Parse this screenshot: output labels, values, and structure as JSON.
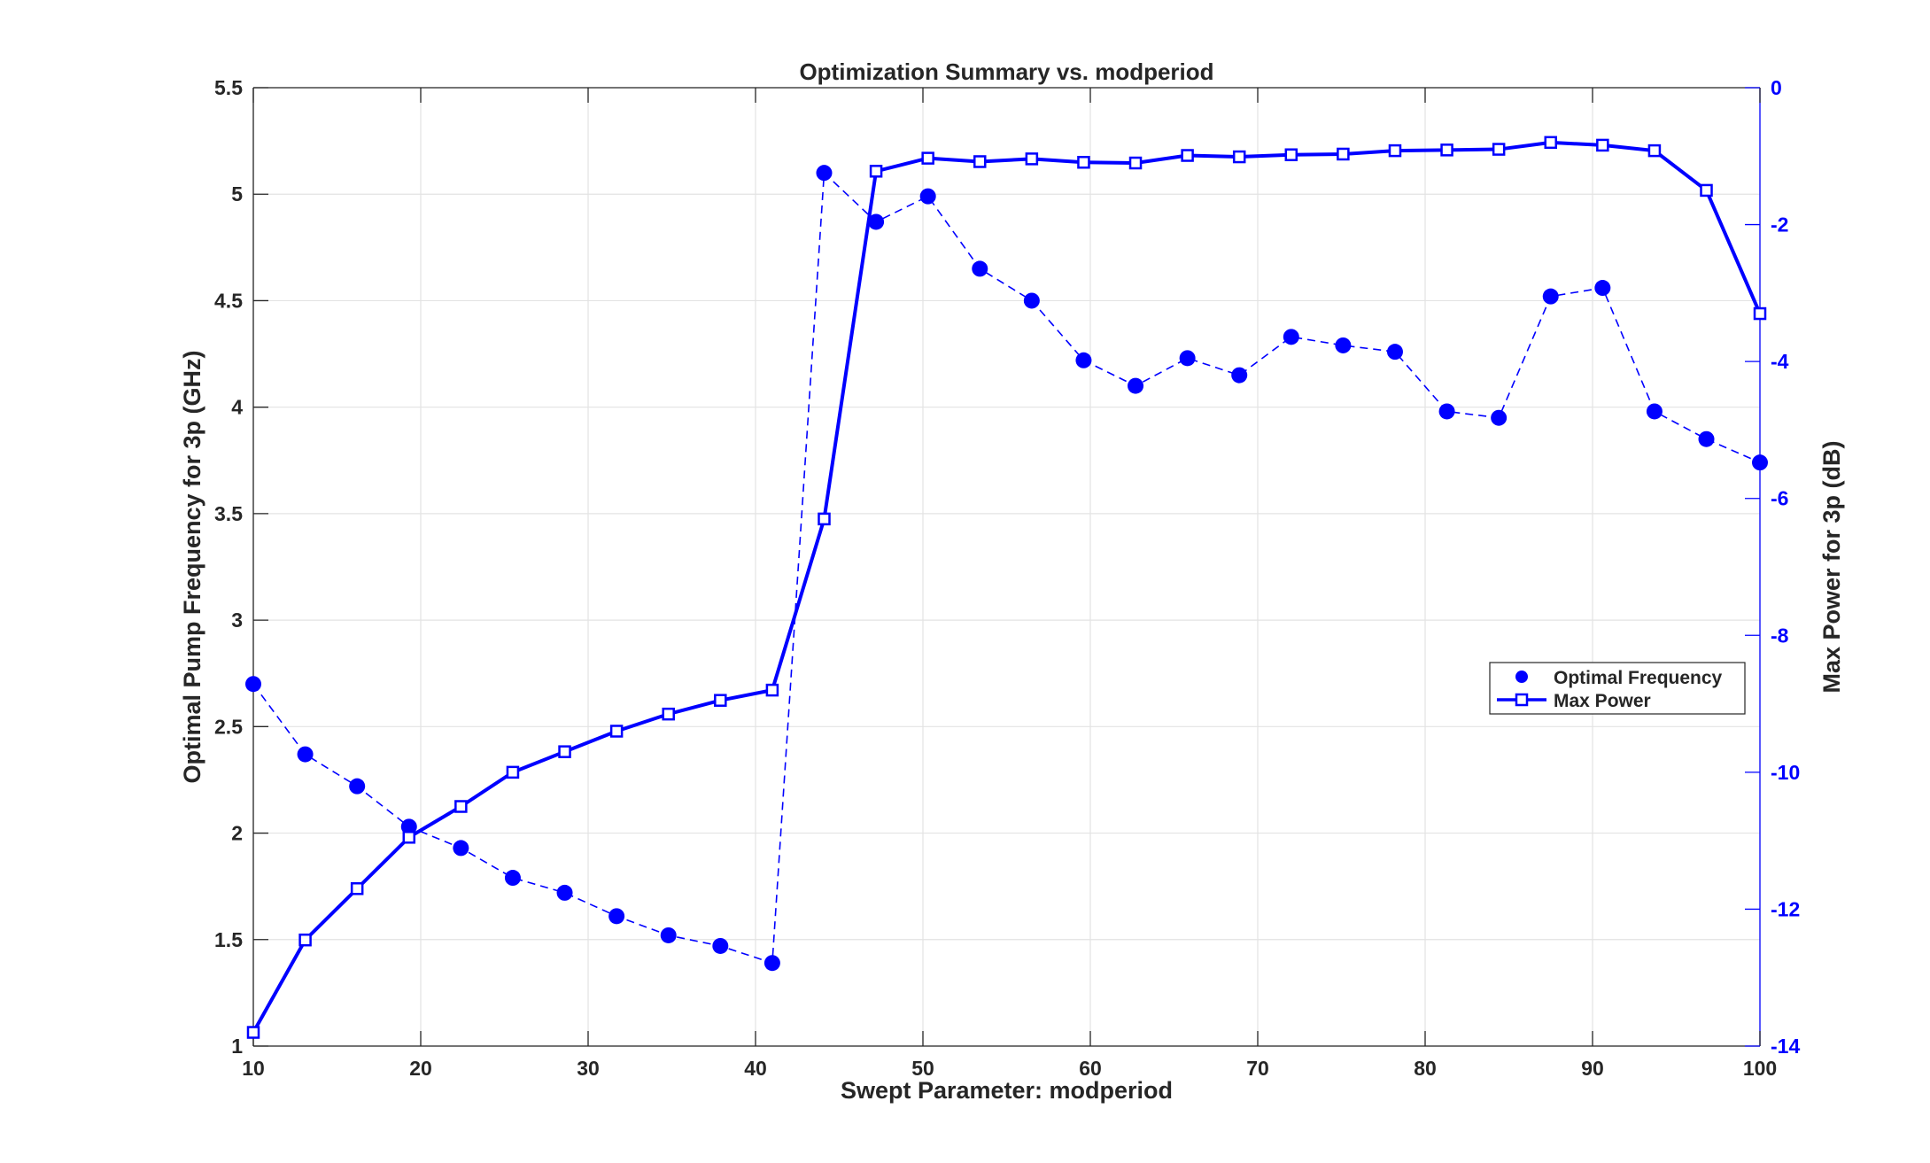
{
  "chart_data": {
    "type": "line",
    "title": "Optimization Summary vs. modperiod",
    "xlabel": "Swept Parameter: modperiod",
    "ylabel_left": "Optimal Pump Frequency for 3p (GHz)",
    "ylabel_right": "Max Power for 3p (dB)",
    "xlim": [
      10,
      100
    ],
    "ylim_left": [
      1,
      5.5
    ],
    "ylim_right": [
      -14,
      0
    ],
    "xticks": [
      10,
      20,
      30,
      40,
      50,
      60,
      70,
      80,
      90,
      100
    ],
    "yticks_left": [
      1,
      1.5,
      2,
      2.5,
      3,
      3.5,
      4,
      4.5,
      5,
      5.5
    ],
    "yticks_right": [
      -14,
      -12,
      -10,
      -8,
      -6,
      -4,
      -2,
      0
    ],
    "grid": true,
    "legend_position": "right",
    "color": "#0000ff",
    "x": [
      10,
      13.1,
      16.2,
      19.3,
      22.4,
      25.5,
      28.6,
      31.7,
      34.8,
      37.9,
      41,
      44.1,
      47.2,
      50.3,
      53.4,
      56.5,
      59.6,
      62.7,
      65.8,
      68.9,
      72,
      75.1,
      78.2,
      81.3,
      84.4,
      87.5,
      90.6,
      93.7,
      96.8,
      100
    ],
    "series": [
      {
        "name": "Optimal Frequency",
        "axis": "left",
        "style": "dashed-with-filled-circles",
        "values": [
          2.7,
          2.37,
          2.22,
          2.03,
          1.93,
          1.79,
          1.72,
          1.61,
          1.52,
          1.47,
          1.39,
          5.1,
          4.87,
          4.99,
          4.65,
          4.5,
          4.22,
          4.1,
          4.23,
          4.15,
          4.33,
          4.29,
          4.26,
          3.98,
          3.95,
          4.52,
          4.56,
          3.98,
          3.85,
          3.74
        ]
      },
      {
        "name": "Max Power",
        "axis": "right",
        "style": "solid-with-open-squares",
        "values": [
          -13.8,
          -12.45,
          -11.7,
          -10.95,
          -10.5,
          -10.0,
          -9.7,
          -9.4,
          -9.15,
          -8.95,
          -8.8,
          -6.3,
          -1.22,
          -1.03,
          -1.08,
          -1.04,
          -1.09,
          -1.1,
          -0.99,
          -1.01,
          -0.98,
          -0.97,
          -0.92,
          -0.91,
          -0.9,
          -0.8,
          -0.84,
          -0.92,
          -1.5,
          -3.3
        ]
      }
    ]
  }
}
